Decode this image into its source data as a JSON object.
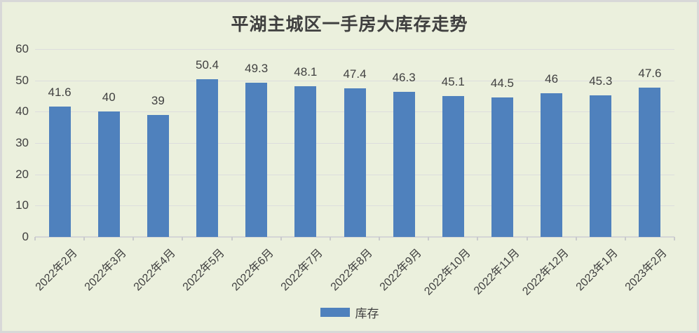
{
  "chart_data": {
    "type": "bar",
    "title": "平湖主城区一手房大库存走势",
    "categories": [
      "2022年2月",
      "2022年3月",
      "2022年4月",
      "2022年5月",
      "2022年6月",
      "2022年7月",
      "2022年8月",
      "2022年9月",
      "2022年10月",
      "2022年11月",
      "2022年12月",
      "2023年1月",
      "2023年2月"
    ],
    "series": [
      {
        "name": "库存",
        "values": [
          41.6,
          40,
          39,
          50.4,
          49.3,
          48.1,
          47.4,
          46.3,
          45.1,
          44.5,
          46,
          45.3,
          47.6
        ]
      }
    ],
    "data_labels": [
      "41.6",
      "40",
      "39",
      "50.4",
      "49.3",
      "48.1",
      "47.4",
      "46.3",
      "45.1",
      "44.5",
      "46",
      "45.3",
      "47.6"
    ],
    "xlabel": "",
    "ylabel": "",
    "ylim": [
      0,
      60
    ],
    "yticks": [
      0,
      10,
      20,
      30,
      40,
      50,
      60
    ],
    "grid": true,
    "legend_position": "bottom",
    "x_label_rotation_deg": 45
  },
  "colors": {
    "bar": "#4f81bd",
    "background": "#ebf0dd",
    "gridline": "#dcdddd",
    "axis_text": "#404040",
    "title_text": "#3f3f3f",
    "border": "#d8d8d8"
  }
}
